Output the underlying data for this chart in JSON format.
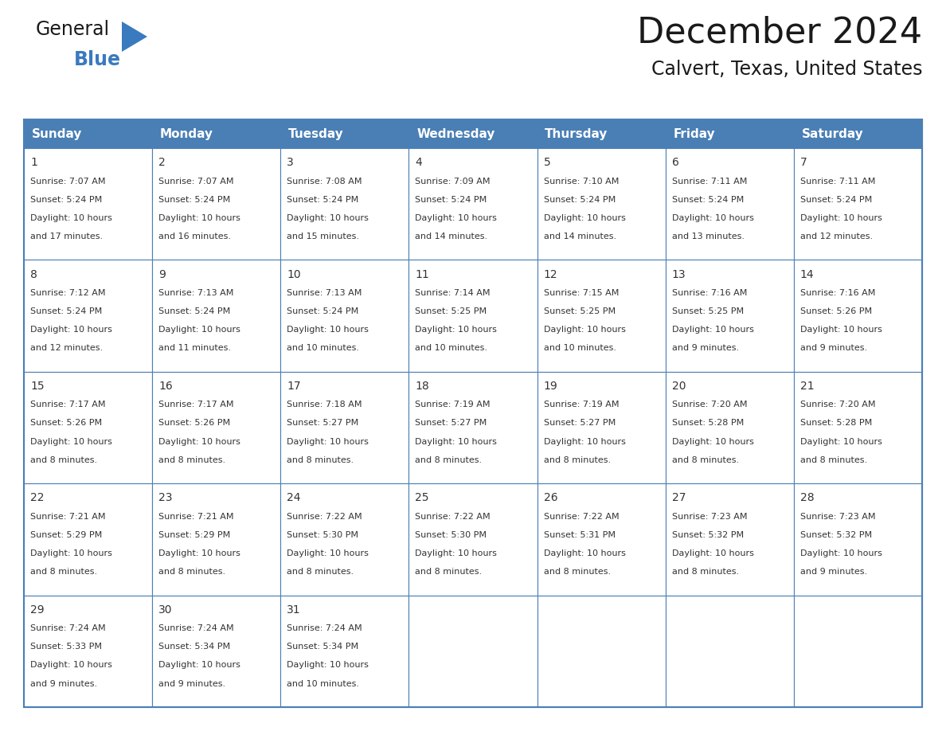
{
  "title": "December 2024",
  "subtitle": "Calvert, Texas, United States",
  "header_bg": "#4A7FB5",
  "header_text": "#FFFFFF",
  "cell_bg": "#FFFFFF",
  "border_color": "#4A7FB5",
  "alt_row_bg": "#EEF3F8",
  "day_names": [
    "Sunday",
    "Monday",
    "Tuesday",
    "Wednesday",
    "Thursday",
    "Friday",
    "Saturday"
  ],
  "weeks": [
    [
      {
        "day": 1,
        "sunrise": "7:07 AM",
        "sunset": "5:24 PM",
        "daylight": "10 hours and 17 minutes."
      },
      {
        "day": 2,
        "sunrise": "7:07 AM",
        "sunset": "5:24 PM",
        "daylight": "10 hours and 16 minutes."
      },
      {
        "day": 3,
        "sunrise": "7:08 AM",
        "sunset": "5:24 PM",
        "daylight": "10 hours and 15 minutes."
      },
      {
        "day": 4,
        "sunrise": "7:09 AM",
        "sunset": "5:24 PM",
        "daylight": "10 hours and 14 minutes."
      },
      {
        "day": 5,
        "sunrise": "7:10 AM",
        "sunset": "5:24 PM",
        "daylight": "10 hours and 14 minutes."
      },
      {
        "day": 6,
        "sunrise": "7:11 AM",
        "sunset": "5:24 PM",
        "daylight": "10 hours and 13 minutes."
      },
      {
        "day": 7,
        "sunrise": "7:11 AM",
        "sunset": "5:24 PM",
        "daylight": "10 hours and 12 minutes."
      }
    ],
    [
      {
        "day": 8,
        "sunrise": "7:12 AM",
        "sunset": "5:24 PM",
        "daylight": "10 hours and 12 minutes."
      },
      {
        "day": 9,
        "sunrise": "7:13 AM",
        "sunset": "5:24 PM",
        "daylight": "10 hours and 11 minutes."
      },
      {
        "day": 10,
        "sunrise": "7:13 AM",
        "sunset": "5:24 PM",
        "daylight": "10 hours and 10 minutes."
      },
      {
        "day": 11,
        "sunrise": "7:14 AM",
        "sunset": "5:25 PM",
        "daylight": "10 hours and 10 minutes."
      },
      {
        "day": 12,
        "sunrise": "7:15 AM",
        "sunset": "5:25 PM",
        "daylight": "10 hours and 10 minutes."
      },
      {
        "day": 13,
        "sunrise": "7:16 AM",
        "sunset": "5:25 PM",
        "daylight": "10 hours and 9 minutes."
      },
      {
        "day": 14,
        "sunrise": "7:16 AM",
        "sunset": "5:26 PM",
        "daylight": "10 hours and 9 minutes."
      }
    ],
    [
      {
        "day": 15,
        "sunrise": "7:17 AM",
        "sunset": "5:26 PM",
        "daylight": "10 hours and 8 minutes."
      },
      {
        "day": 16,
        "sunrise": "7:17 AM",
        "sunset": "5:26 PM",
        "daylight": "10 hours and 8 minutes."
      },
      {
        "day": 17,
        "sunrise": "7:18 AM",
        "sunset": "5:27 PM",
        "daylight": "10 hours and 8 minutes."
      },
      {
        "day": 18,
        "sunrise": "7:19 AM",
        "sunset": "5:27 PM",
        "daylight": "10 hours and 8 minutes."
      },
      {
        "day": 19,
        "sunrise": "7:19 AM",
        "sunset": "5:27 PM",
        "daylight": "10 hours and 8 minutes."
      },
      {
        "day": 20,
        "sunrise": "7:20 AM",
        "sunset": "5:28 PM",
        "daylight": "10 hours and 8 minutes."
      },
      {
        "day": 21,
        "sunrise": "7:20 AM",
        "sunset": "5:28 PM",
        "daylight": "10 hours and 8 minutes."
      }
    ],
    [
      {
        "day": 22,
        "sunrise": "7:21 AM",
        "sunset": "5:29 PM",
        "daylight": "10 hours and 8 minutes."
      },
      {
        "day": 23,
        "sunrise": "7:21 AM",
        "sunset": "5:29 PM",
        "daylight": "10 hours and 8 minutes."
      },
      {
        "day": 24,
        "sunrise": "7:22 AM",
        "sunset": "5:30 PM",
        "daylight": "10 hours and 8 minutes."
      },
      {
        "day": 25,
        "sunrise": "7:22 AM",
        "sunset": "5:30 PM",
        "daylight": "10 hours and 8 minutes."
      },
      {
        "day": 26,
        "sunrise": "7:22 AM",
        "sunset": "5:31 PM",
        "daylight": "10 hours and 8 minutes."
      },
      {
        "day": 27,
        "sunrise": "7:23 AM",
        "sunset": "5:32 PM",
        "daylight": "10 hours and 8 minutes."
      },
      {
        "day": 28,
        "sunrise": "7:23 AM",
        "sunset": "5:32 PM",
        "daylight": "10 hours and 9 minutes."
      }
    ],
    [
      {
        "day": 29,
        "sunrise": "7:24 AM",
        "sunset": "5:33 PM",
        "daylight": "10 hours and 9 minutes."
      },
      {
        "day": 30,
        "sunrise": "7:24 AM",
        "sunset": "5:34 PM",
        "daylight": "10 hours and 9 minutes."
      },
      {
        "day": 31,
        "sunrise": "7:24 AM",
        "sunset": "5:34 PM",
        "daylight": "10 hours and 10 minutes."
      },
      null,
      null,
      null,
      null
    ]
  ],
  "logo_text_general": "General",
  "logo_text_blue": "Blue",
  "logo_color_general": "#1a1a1a",
  "logo_color_blue": "#3a7abf",
  "logo_tri_color": "#3a7abf",
  "title_color": "#1a1a1a",
  "subtitle_color": "#1a1a1a",
  "cell_text_color": "#333333",
  "num_weeks": 5,
  "title_fontsize": 32,
  "subtitle_fontsize": 17,
  "header_fontsize": 11,
  "day_num_fontsize": 10,
  "cell_text_fontsize": 8
}
